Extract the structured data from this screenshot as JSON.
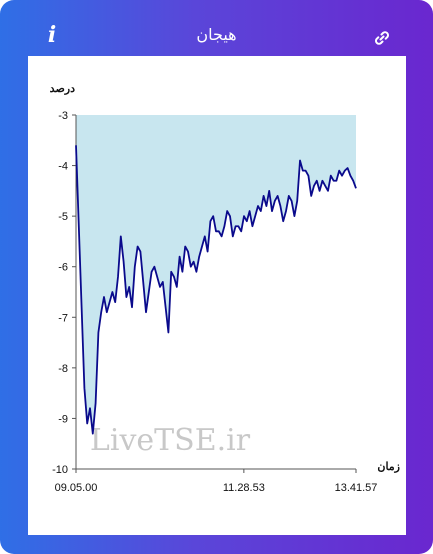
{
  "header": {
    "title": "هیجان",
    "info_label": "i"
  },
  "icons": {
    "info": "info-icon",
    "link": "link-icon"
  },
  "colors": {
    "line": "#0a0a8c",
    "fill": "#c8e6ef",
    "gradient_start": "#2f6fe6",
    "gradient_end": "#6a27cf"
  },
  "watermark": "LiveTSE.ir",
  "chart_data": {
    "type": "area",
    "ylabel": "درصد",
    "xlabel": "زمان",
    "ylim": [
      -10,
      -3
    ],
    "yticks": [
      "-3",
      "-4",
      "-5",
      "-6",
      "-7",
      "-8",
      "-9",
      "-10"
    ],
    "xticks": [
      "09.05.00",
      "11.28.53",
      "13.41.57"
    ],
    "fill_to": -3,
    "series": [
      {
        "x": [
          0,
          1,
          2,
          3,
          4,
          5,
          6,
          7,
          8,
          9,
          10,
          11,
          12,
          13,
          14,
          15,
          16,
          17,
          18,
          19,
          20,
          21,
          22,
          23,
          24,
          25,
          26,
          27,
          28,
          29,
          30,
          31,
          32,
          33,
          34,
          35,
          36,
          37,
          38,
          39,
          40,
          41,
          42,
          43,
          44,
          45,
          46,
          47,
          48,
          49,
          50,
          51,
          52,
          53,
          54,
          55,
          56,
          57,
          58,
          59,
          60,
          61,
          62,
          63,
          64,
          65,
          66,
          67,
          68,
          69,
          70,
          71,
          72,
          73,
          74,
          75,
          76,
          77,
          78,
          79,
          80,
          81,
          82,
          83,
          84,
          85,
          86,
          87,
          88,
          89,
          90,
          91,
          92,
          93,
          94,
          95,
          96,
          97,
          98,
          99,
          100
        ],
        "values": [
          -3.6,
          -5.2,
          -6.8,
          -8.4,
          -9.1,
          -8.8,
          -9.3,
          -8.7,
          -7.3,
          -6.9,
          -6.6,
          -6.9,
          -6.7,
          -6.5,
          -6.7,
          -6.2,
          -5.4,
          -5.9,
          -6.6,
          -6.4,
          -6.8,
          -6.0,
          -5.6,
          -5.7,
          -6.3,
          -6.9,
          -6.5,
          -6.1,
          -6.0,
          -6.2,
          -6.4,
          -6.3,
          -6.8,
          -7.3,
          -6.1,
          -6.2,
          -6.4,
          -5.8,
          -6.1,
          -5.6,
          -5.7,
          -6.0,
          -5.9,
          -6.1,
          -5.8,
          -5.6,
          -5.4,
          -5.7,
          -5.1,
          -5.0,
          -5.3,
          -5.3,
          -5.4,
          -5.2,
          -4.9,
          -5.0,
          -5.4,
          -5.2,
          -5.2,
          -5.3,
          -5.0,
          -5.1,
          -4.9,
          -5.2,
          -5.0,
          -4.8,
          -4.9,
          -4.6,
          -4.8,
          -4.5,
          -4.9,
          -4.7,
          -4.6,
          -4.8,
          -5.1,
          -4.9,
          -4.6,
          -4.7,
          -5.0,
          -4.7,
          -3.9,
          -4.1,
          -4.1,
          -4.2,
          -4.6,
          -4.4,
          -4.3,
          -4.5,
          -4.3,
          -4.4,
          -4.5,
          -4.2,
          -4.3,
          -4.3,
          -4.1,
          -4.2,
          -4.1,
          -4.05,
          -4.2,
          -4.3,
          -4.45
        ]
      }
    ]
  }
}
